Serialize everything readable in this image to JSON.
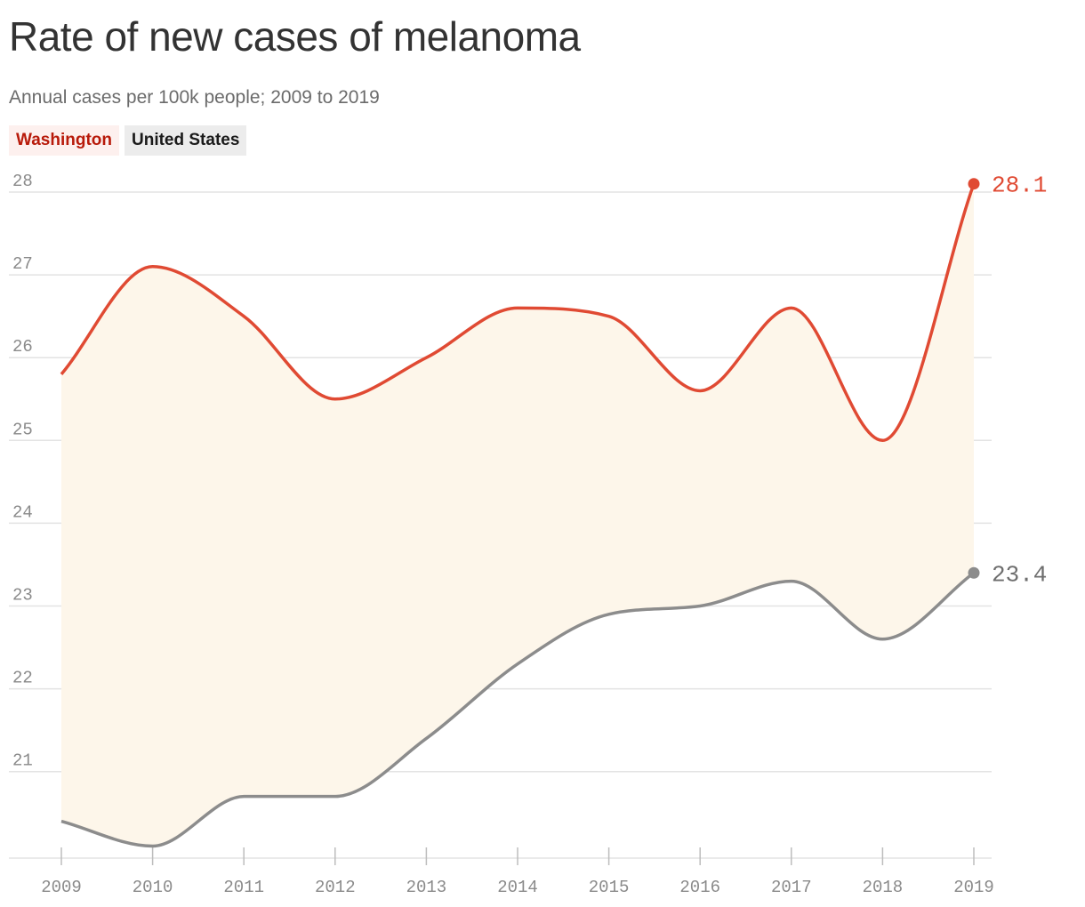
{
  "chart_data": {
    "type": "line",
    "title": "Rate of new cases of melanoma",
    "subtitle": "Annual cases per 100k people; 2009 to 2019",
    "x": [
      2009,
      2010,
      2011,
      2012,
      2013,
      2014,
      2015,
      2016,
      2017,
      2018,
      2019
    ],
    "series": [
      {
        "name": "Washington",
        "color": "#e04a33",
        "label_color": "#b81a0a",
        "values": [
          25.8,
          27.1,
          26.5,
          25.5,
          26.0,
          26.6,
          26.5,
          25.6,
          26.6,
          25.0,
          28.1
        ]
      },
      {
        "name": "United States",
        "color": "#8c8c8c",
        "label_color": "#1a1a1a",
        "values": [
          20.4,
          20.1,
          20.7,
          20.7,
          21.4,
          22.3,
          22.9,
          23.0,
          23.3,
          22.6,
          23.4
        ]
      }
    ],
    "end_labels": [
      "28.1",
      "23.4"
    ],
    "y_ticks": [
      21,
      22,
      23,
      24,
      25,
      26,
      27,
      28
    ],
    "ylim": [
      20.0,
      28.3
    ],
    "fill_between_color": "#fdf6ea",
    "grid": true,
    "legend_position": "top-left"
  }
}
